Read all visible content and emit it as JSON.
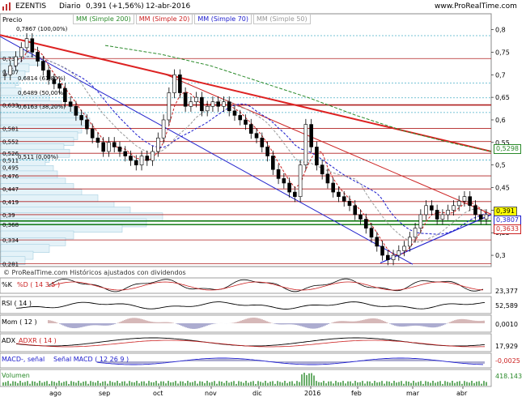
{
  "header": {
    "ticker": "EZENTIS",
    "period": "Diario",
    "quote": "0,391 (+1,56%)",
    "date": "12-abr-2016",
    "site": "www.ProRealTime.com"
  },
  "legend": {
    "price": "Precio",
    "ma200": "MM (Simple 200)",
    "ma20": "MM (Simple 20)",
    "ma70": "MM (Simple 70)",
    "ma50": "MM (Simple 50)"
  },
  "colors": {
    "ma200": "#2a8a2a",
    "ma20": "#cc2222",
    "ma70": "#1a1acc",
    "ma50": "#999999",
    "up": "#ffffff",
    "down": "#000000",
    "fib": "#4ab0c8",
    "sr": "#b02020",
    "support": "#007000"
  },
  "footer_note": "© ProRealTime.com   Históricos ajustados con dividendos",
  "right_badges": {
    "last": "0,391",
    "ma70": "0,3807",
    "ma20": "0,3633",
    "ma200": "0,5298"
  },
  "fib_labels": [
    "0,7867 (100,00%)",
    "0,6814 (61,80%)",
    "0,6489 (50,00%)",
    "0,6163 (38,20%)",
    "0,511 (0,00%)"
  ],
  "volume_profile_labels": [
    "0,736",
    "0,707",
    "0,633",
    "0,581",
    "0,552",
    "0,526",
    "0,511",
    "0,495",
    "0,476",
    "0,447",
    "0,419",
    "0,39",
    "0,368",
    "0,334",
    "0,281"
  ],
  "indicators": [
    {
      "name": "%K",
      "sub": "%D ( 14 3 5 )",
      "value": "23,377"
    },
    {
      "name": "RSI ( 14 )",
      "sub": "",
      "value": "52,589"
    },
    {
      "name": "Mom ( 12 )",
      "sub": "",
      "value": "0,0010"
    },
    {
      "name": "ADX",
      "sub": "ADXR ( 14 )",
      "value": "17,929"
    },
    {
      "name": "MACD-, señal",
      "sub": "Señal   MACD ( 12 26 9 )",
      "value": "-0,0025"
    },
    {
      "name": "Volumen",
      "sub": "",
      "value": "418.143"
    }
  ],
  "chart_data": {
    "type": "candlestick",
    "x_ticks": [
      "ago",
      "sep",
      "oct",
      "nov",
      "dic",
      "2016",
      "feb",
      "mar",
      "abr"
    ],
    "y_ticks": [
      "0,8",
      "0,75",
      "0,7",
      "0,65",
      "0,6",
      "0,55",
      "0,5",
      "0,45",
      "0,4",
      "0,35",
      "0,3"
    ],
    "ylim": [
      0.275,
      0.81
    ],
    "horizontal_levels": [
      0.7867,
      0.736,
      0.6814,
      0.6489,
      0.633,
      0.6163,
      0.581,
      0.552,
      0.526,
      0.511,
      0.476,
      0.447,
      0.419,
      0.39,
      0.376,
      0.368,
      0.334,
      0.281
    ],
    "trendlines": [
      {
        "name": "resistance",
        "from": [
          "jul-15",
          0.788
        ],
        "to": [
          "abr-16",
          0.53
        ]
      },
      {
        "name": "channel-top",
        "from": [
          "oct-15",
          0.702
        ],
        "to": [
          "abr-16",
          0.391
        ]
      },
      {
        "name": "channel-bottom",
        "from": [
          "jul-15",
          0.785
        ],
        "to": [
          "mar-16",
          0.28
        ]
      },
      {
        "name": "rising-support",
        "from": [
          "feb-16",
          0.283
        ],
        "to": [
          "abr-16",
          0.39
        ]
      }
    ],
    "ohlc_close_approx": [
      0.7,
      0.72,
      0.74,
      0.76,
      0.78,
      0.75,
      0.73,
      0.71,
      0.69,
      0.68,
      0.67,
      0.64,
      0.63,
      0.61,
      0.6,
      0.58,
      0.56,
      0.55,
      0.53,
      0.55,
      0.54,
      0.53,
      0.52,
      0.51,
      0.5,
      0.52,
      0.51,
      0.53,
      0.56,
      0.6,
      0.66,
      0.7,
      0.66,
      0.63,
      0.64,
      0.65,
      0.62,
      0.63,
      0.64,
      0.63,
      0.64,
      0.62,
      0.61,
      0.6,
      0.59,
      0.57,
      0.56,
      0.54,
      0.52,
      0.49,
      0.47,
      0.46,
      0.44,
      0.43,
      0.5,
      0.59,
      0.54,
      0.5,
      0.48,
      0.46,
      0.44,
      0.43,
      0.42,
      0.41,
      0.39,
      0.38,
      0.36,
      0.34,
      0.32,
      0.3,
      0.29,
      0.3,
      0.31,
      0.32,
      0.34,
      0.36,
      0.39,
      0.41,
      0.4,
      0.38,
      0.39,
      0.4,
      0.41,
      0.42,
      0.43,
      0.41,
      0.39,
      0.38,
      0.39
    ]
  }
}
